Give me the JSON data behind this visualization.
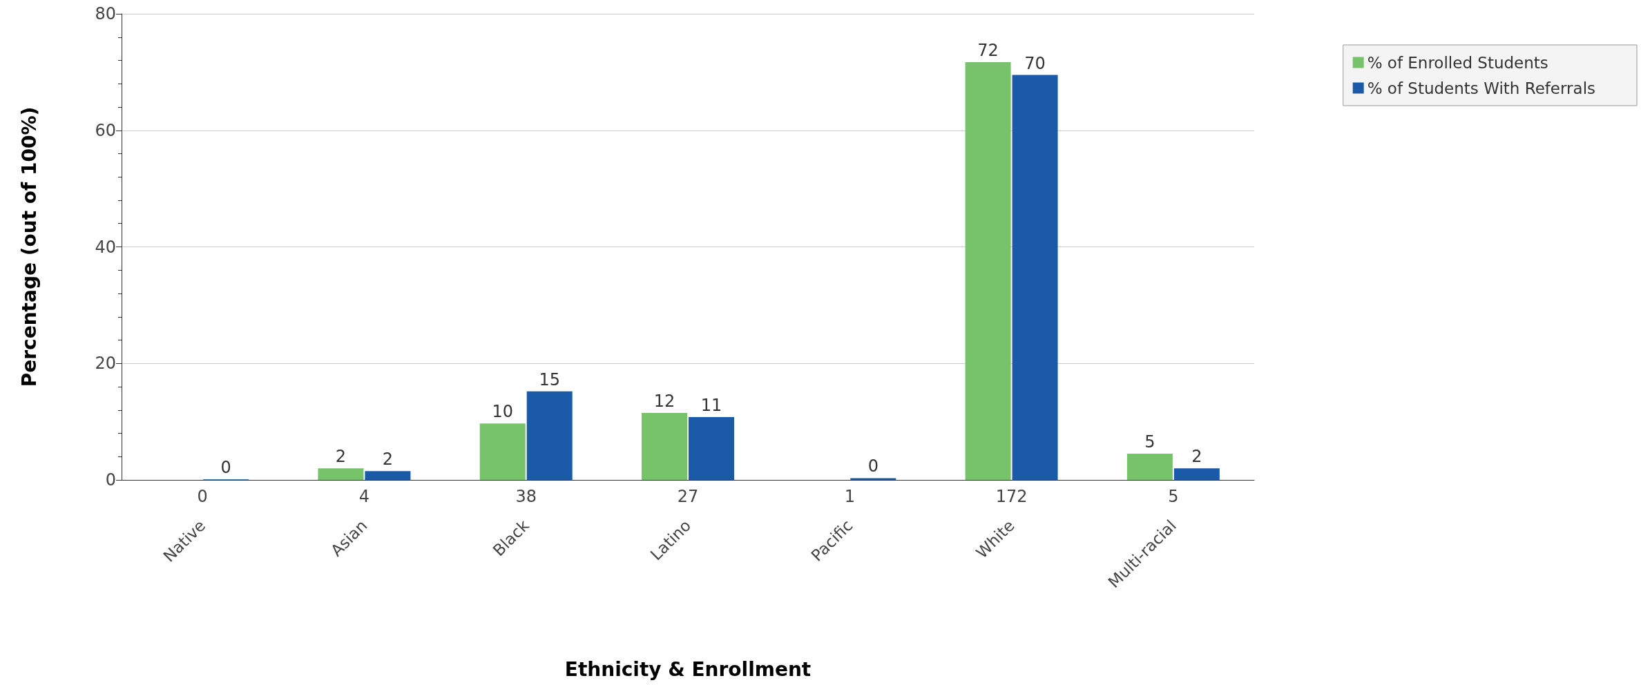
{
  "chart_data": {
    "type": "bar",
    "xlabel": "Ethnicity & Enrollment",
    "ylabel": "Percentage (out of 100%)",
    "categories": [
      "Native",
      "Asian",
      "Black",
      "Latino",
      "Pacific",
      "White",
      "Multi-racial"
    ],
    "series": [
      {
        "name": "% of Enrolled Students",
        "color": "#77c36a",
        "values": [
          0,
          2.0,
          9.7,
          11.5,
          0,
          71.7,
          4.5
        ],
        "value_labels": [
          null,
          "2",
          "10",
          "12",
          null,
          "72",
          "5"
        ]
      },
      {
        "name": "% of Students With Referrals",
        "color": "#1a5aa8",
        "values": [
          0.1,
          1.5,
          15.2,
          10.8,
          0.3,
          69.5,
          2.0
        ],
        "value_labels": [
          "0",
          "2",
          "15",
          "11",
          "0",
          "70",
          "2"
        ]
      }
    ],
    "annotations": [
      "0",
      "4",
      "38",
      "27",
      "1",
      "172",
      "5"
    ],
    "ylim": [
      0,
      80
    ],
    "yticks": [
      0,
      20,
      40,
      60,
      80
    ],
    "grid": "y",
    "legend": "top right"
  }
}
